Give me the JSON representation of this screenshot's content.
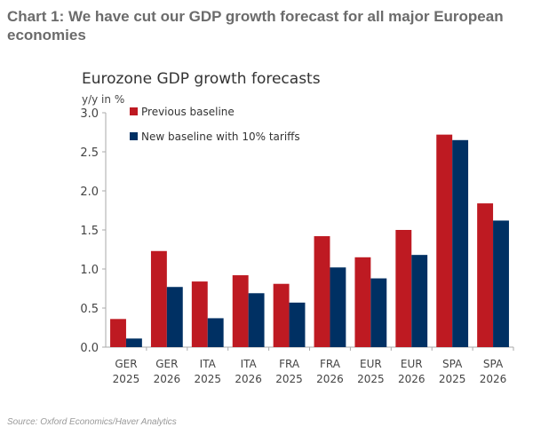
{
  "heading": "Chart 1: We have cut our GDP growth forecast for all major European economies",
  "source": "Source: Oxford Economics/Haver Analytics",
  "colors": {
    "previous": "#be1a22",
    "new": "#003063"
  },
  "chart_data": {
    "type": "bar",
    "title": "Eurozone GDP growth forecasts",
    "ylabel": "y/y in %",
    "ylim": [
      0,
      3.0
    ],
    "yticks": [
      "0.0",
      "0.5",
      "1.0",
      "1.5",
      "2.0",
      "2.5",
      "3.0"
    ],
    "grid": false,
    "legend_position": "top-left",
    "categories": [
      [
        "GER",
        "2025"
      ],
      [
        "GER",
        "2026"
      ],
      [
        "ITA",
        "2025"
      ],
      [
        "ITA",
        "2026"
      ],
      [
        "FRA",
        "2025"
      ],
      [
        "FRA",
        "2026"
      ],
      [
        "EUR",
        "2025"
      ],
      [
        "EUR",
        "2026"
      ],
      [
        "SPA",
        "2025"
      ],
      [
        "SPA",
        "2026"
      ]
    ],
    "series": [
      {
        "name": "Previous baseline",
        "values": [
          0.36,
          1.23,
          0.84,
          0.92,
          0.81,
          1.42,
          1.15,
          1.5,
          2.72,
          1.84
        ]
      },
      {
        "name": "New baseline with 10% tariffs",
        "values": [
          0.11,
          0.77,
          0.37,
          0.69,
          0.57,
          1.02,
          0.88,
          1.18,
          2.65,
          1.62
        ]
      }
    ]
  }
}
